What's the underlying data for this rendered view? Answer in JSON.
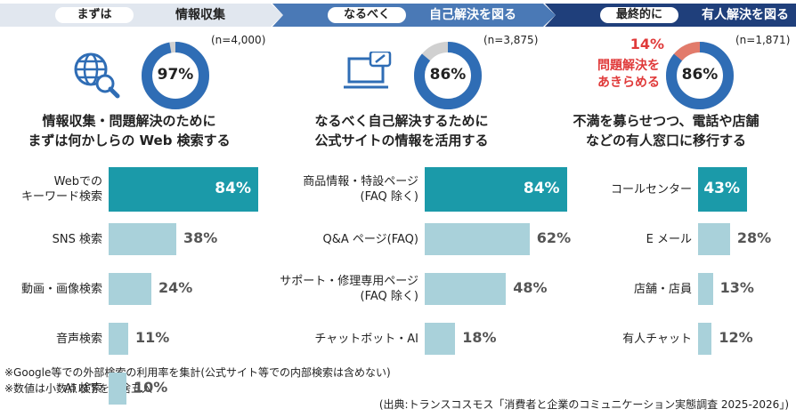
{
  "chart_data": [
    {
      "type": "pie",
      "step_label": "まずは",
      "step_title": "情報収集",
      "n_label": "(n=4,000)",
      "values": [
        97
      ],
      "value_labels": [
        "97%"
      ],
      "colors": [
        "#2f6db5"
      ]
    },
    {
      "type": "bar",
      "title": "情報収集・問題解決のために\nまずは何かしらの Web 検索する",
      "categories": [
        "Webでの\nキーワード検索",
        "SNS 検索",
        "動画・画像検索",
        "音声検索",
        "AI 検索"
      ],
      "values": [
        84,
        38,
        24,
        11,
        10
      ],
      "value_labels": [
        "84%",
        "38%",
        "24%",
        "11%",
        "10%"
      ],
      "color": "#a9d1da",
      "highlight_color": "#1b9aa9"
    },
    {
      "type": "pie",
      "step_label": "なるべく",
      "step_title": "自己解決を図る",
      "n_label": "(n=3,875)",
      "values": [
        86
      ],
      "value_labels": [
        "86%"
      ],
      "colors": [
        "#2f6db5"
      ]
    },
    {
      "type": "bar",
      "title": "なるべく自己解決するために\n公式サイトの情報を活用する",
      "categories": [
        "商品情報・特設ページ\n(FAQ 除く)",
        "Q&A ページ(FAQ)",
        "サポート・修理専用ページ\n(FAQ 除く)",
        "チャットボット・AI"
      ],
      "values": [
        84,
        62,
        48,
        18
      ],
      "value_labels": [
        "84%",
        "62%",
        "48%",
        "18%"
      ],
      "color": "#a9d1da",
      "highlight_color": "#1b9aa9"
    },
    {
      "type": "pie",
      "step_label": "最終的に",
      "step_title": "有人解決を図る",
      "n_label": "(n=1,871)",
      "values": [
        86,
        14
      ],
      "value_labels": [
        "86%",
        "14%"
      ],
      "colors": [
        "#2f6db5",
        "#e27b6b"
      ],
      "annotation": "問題解決を\nあきらめる"
    },
    {
      "type": "bar",
      "title": "不満を募らせつつ、電話や店舗\nなどの有人窓口に移行する",
      "categories": [
        "コールセンター",
        "E メール",
        "店舗・店員",
        "有人チャット"
      ],
      "values": [
        43,
        28,
        13,
        12
      ],
      "value_labels": [
        "43%",
        "28%",
        "13%",
        "12%"
      ],
      "color": "#a9d1da",
      "highlight_color": "#1b9aa9"
    }
  ],
  "notes": [
    "※Google等での外部検索の利用率を集計(公式サイト等での内部検索は含めない)",
    "※数値は小数点以下を四捨五入"
  ],
  "source": "(出典:トランスコスモス「消費者と企業のコミュニケーション実態調査 2025-2026」)"
}
